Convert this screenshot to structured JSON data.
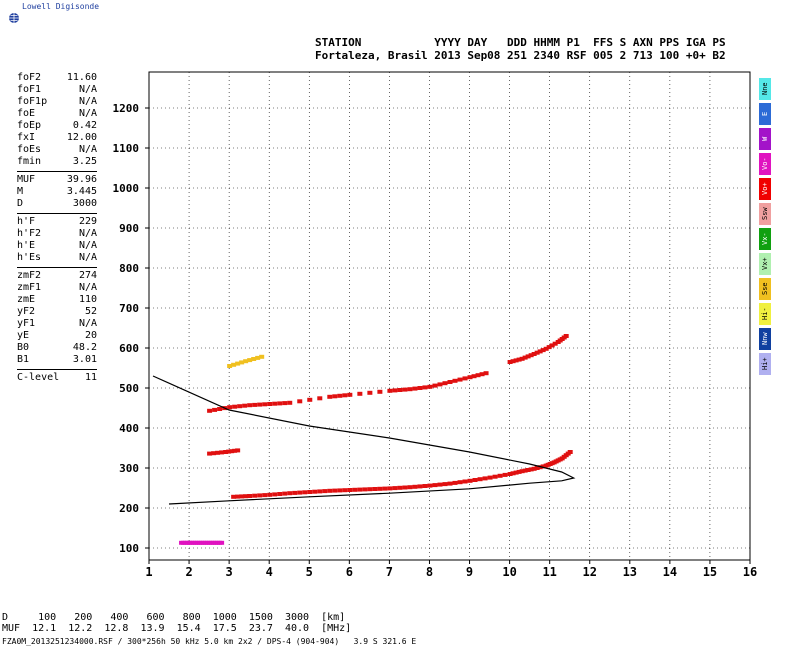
{
  "logo": {
    "text": "Lowell Digisonde",
    "icon": "globe-icon"
  },
  "header": {
    "labels": "STATION           YYYY DAY   DDD HHMM P1  FFS S AXN PPS IGA PS",
    "values": "Fortaleza, Brasil 2013 Sep08 251 2340 RSF 005 2 713 100 +0+ B2"
  },
  "params": [
    [
      {
        "name": "foF2",
        "value": "11.60"
      },
      {
        "name": "foF1",
        "value": "N/A"
      },
      {
        "name": "foF1p",
        "value": "N/A"
      },
      {
        "name": "foE",
        "value": "N/A"
      },
      {
        "name": "foEp",
        "value": "0.42"
      },
      {
        "name": "fxI",
        "value": "12.00"
      },
      {
        "name": "foEs",
        "value": "N/A"
      },
      {
        "name": "fmin",
        "value": "3.25"
      }
    ],
    [
      {
        "name": "MUF",
        "value": "39.96"
      },
      {
        "name": "M",
        "value": "3.445"
      },
      {
        "name": "D",
        "value": "3000"
      }
    ],
    [
      {
        "name": "h'F",
        "value": "229"
      },
      {
        "name": "h'F2",
        "value": "N/A"
      },
      {
        "name": "h'E",
        "value": "N/A"
      },
      {
        "name": "h'Es",
        "value": "N/A"
      }
    ],
    [
      {
        "name": "zmF2",
        "value": "274"
      },
      {
        "name": "zmF1",
        "value": "N/A"
      },
      {
        "name": "zmE",
        "value": "110"
      },
      {
        "name": "yF2",
        "value": "52"
      },
      {
        "name": "yF1",
        "value": "N/A"
      },
      {
        "name": "yE",
        "value": "20"
      },
      {
        "name": "B0",
        "value": "48.2"
      },
      {
        "name": "B1",
        "value": "3.01"
      }
    ],
    [
      {
        "name": "C-level",
        "value": "11"
      }
    ]
  ],
  "legend": [
    {
      "label": "Nne",
      "color": "#55e8e8"
    },
    {
      "label": "E",
      "color": "#2c6bd6"
    },
    {
      "label": "W",
      "color": "#a313c9"
    },
    {
      "label": "Vo-",
      "color": "#e013c0"
    },
    {
      "label": "Vo+",
      "color": "#f00000"
    },
    {
      "label": "Ssw",
      "color": "#f0a0a0"
    },
    {
      "label": "Vx-",
      "color": "#10a010"
    },
    {
      "label": "Vx+",
      "color": "#b0f0b0"
    },
    {
      "label": "Sse",
      "color": "#f0c020"
    },
    {
      "label": "Hi-",
      "color": "#f0f040"
    },
    {
      "label": "Nnw",
      "color": "#1040a0"
    },
    {
      "label": "Hi+",
      "color": "#b0b0f0"
    }
  ],
  "footer": {
    "d_row": "D     100   200   400   600   800  1000  1500  3000  [km]",
    "muf_row": "MUF  12.1  12.2  12.8  13.9  15.4  17.5  23.7  40.0  [MHz]",
    "file_row": "FZA0M_2013251234000.RSF / 300*256h 50 kHz 5.0 km 2x2 / DPS-4 (904-904)   3.9 S 321.6 E"
  },
  "chart_data": {
    "type": "scatter",
    "title": "",
    "xlabel": "",
    "ylabel": "",
    "xlim": [
      1,
      16
    ],
    "ylim": [
      70,
      1290
    ],
    "x_ticks": [
      1,
      2,
      3,
      4,
      5,
      6,
      7,
      8,
      9,
      10,
      11,
      12,
      13,
      14,
      15,
      16
    ],
    "y_ticks": [
      100,
      200,
      300,
      400,
      500,
      600,
      700,
      800,
      900,
      1000,
      1100,
      1200
    ],
    "grid": true,
    "series": [
      {
        "name": "F2 O-mode trace",
        "color": "#e01010",
        "x": [
          3.1,
          3.5,
          4.0,
          4.5,
          5.0,
          5.5,
          6.0,
          6.5,
          7.0,
          7.5,
          8.0,
          8.5,
          9.0,
          9.5,
          10.0,
          10.3,
          10.6,
          10.9,
          11.1,
          11.3,
          11.5
        ],
        "y": [
          228,
          230,
          233,
          237,
          240,
          243,
          245,
          247,
          249,
          252,
          256,
          261,
          268,
          276,
          285,
          292,
          298,
          306,
          314,
          324,
          340
        ]
      },
      {
        "name": "second hop",
        "color": "#e01010",
        "x": [
          2.5,
          3.0,
          3.5,
          4.0,
          4.5,
          5.5,
          6.0,
          7.0,
          7.5,
          8.0,
          8.5,
          9.0,
          9.4
        ],
        "y": [
          443,
          452,
          457,
          460,
          463,
          478,
          483,
          493,
          497,
          503,
          515,
          527,
          537
        ]
      },
      {
        "name": "third hop",
        "color": "#e01010",
        "x": [
          10.0,
          10.3,
          10.6,
          10.9,
          11.2,
          11.4
        ],
        "y": [
          565,
          573,
          585,
          598,
          615,
          630
        ]
      },
      {
        "name": "low trace",
        "color": "#e01010",
        "x": [
          2.5,
          2.9,
          3.2
        ],
        "y": [
          336,
          340,
          344
        ]
      },
      {
        "name": "upper echoes",
        "color": "#f0c020",
        "x": [
          3.0,
          3.4,
          3.8
        ],
        "y": [
          555,
          567,
          578
        ]
      },
      {
        "name": "sporadic E",
        "color": "#e013c0",
        "x": [
          1.8,
          2.0,
          2.2,
          2.4,
          2.6,
          2.8
        ],
        "y": [
          113,
          113,
          113,
          113,
          113,
          113
        ]
      }
    ],
    "profile": {
      "name": "electron density profile",
      "color": "#000000",
      "x": [
        1.5,
        3.0,
        5.0,
        7.0,
        9.0,
        10.5,
        11.3,
        11.6,
        11.3,
        10.5,
        9.0,
        7.0,
        5.0,
        3.0,
        1.1
      ],
      "y": [
        210,
        218,
        228,
        237,
        248,
        262,
        268,
        275,
        290,
        310,
        340,
        375,
        405,
        445,
        530
      ]
    }
  }
}
